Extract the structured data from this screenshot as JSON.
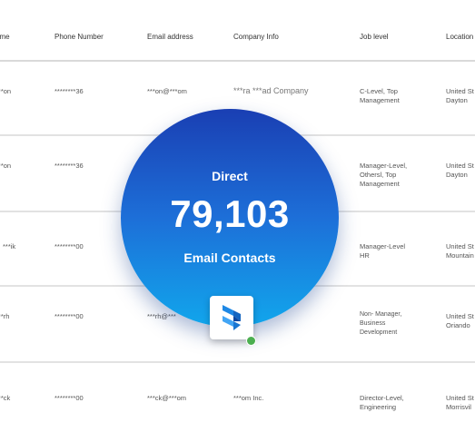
{
  "columns": [
    "ame",
    "Phone Number",
    "Email address",
    "Company Info",
    "Job level",
    "Location"
  ],
  "rows": [
    {
      "name": "***on",
      "phone": "********36",
      "email": "***on@***om",
      "company": "***ra ***ad Company",
      "job": [
        "C-Level, Top",
        "Management"
      ],
      "location": [
        "United St",
        "Dayton"
      ]
    },
    {
      "name": "***on",
      "phone": "********36",
      "email": "",
      "company": "",
      "job": [
        "Manager-Level,",
        "Othersl, Top",
        "Management"
      ],
      "location": [
        "United St",
        "Dayton"
      ]
    },
    {
      "name": "***ik",
      "phone": "********00",
      "email": "",
      "company": "",
      "job": [
        "Manager-Level",
        "HR"
      ],
      "location": [
        "United St",
        "Mountain"
      ]
    },
    {
      "name": "***rh",
      "phone": "********00",
      "email": "***rh@***",
      "company": "",
      "job": [
        "Non- Manager,",
        "Business",
        "Development"
      ],
      "location": [
        "United St",
        "Oriando"
      ]
    },
    {
      "name": "***ck",
      "phone": "********00",
      "email": "***ck@***om",
      "company": "***om Inc.",
      "job": [
        "Director-Level,",
        "Engineering"
      ],
      "location": [
        "United St",
        "Morrisvil"
      ]
    }
  ],
  "badge": {
    "pre": "Direct",
    "count": "79,103",
    "post": "Email Contacts"
  },
  "colors": {
    "circle_top": "#1a3fb3",
    "circle_bottom": "#11a6ec",
    "status_dot": "#4caf50"
  }
}
